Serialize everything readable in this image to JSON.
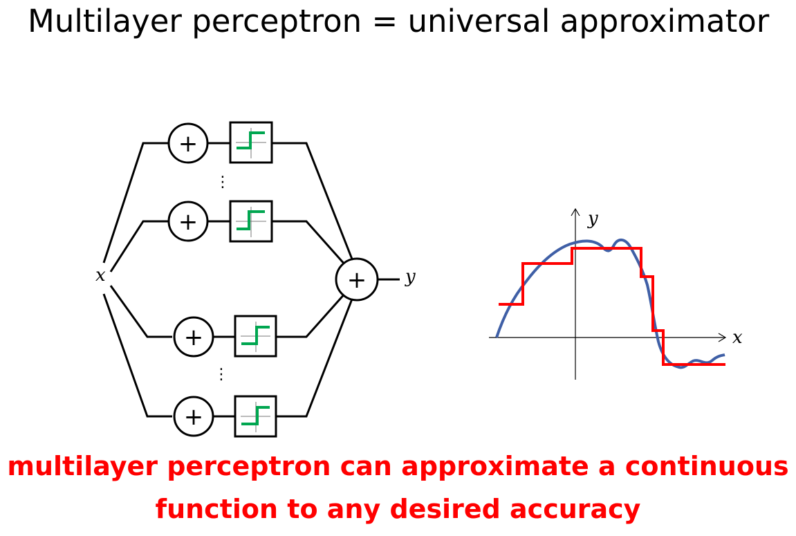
{
  "title": "Multilayer perceptron = universal approximator",
  "network": {
    "input_label": "x",
    "output_label": "y",
    "sum_symbol": "+",
    "ellipsis": "⋮",
    "hidden_unit_count_drawn": 4
  },
  "plot": {
    "x_axis_label": "x",
    "y_axis_label": "y"
  },
  "caption": {
    "line1": "multilayer perceptron can approximate a continuous",
    "line2": "function to any desired accuracy"
  },
  "colors": {
    "caption": "#ff0000",
    "step_function": "#ff0000",
    "activation_step": "#00a650",
    "target_curve": "#3f5fa6",
    "lines": "#000000"
  },
  "icons": {
    "sum_node": "plus-circle-icon",
    "activation": "step-function-icon"
  }
}
